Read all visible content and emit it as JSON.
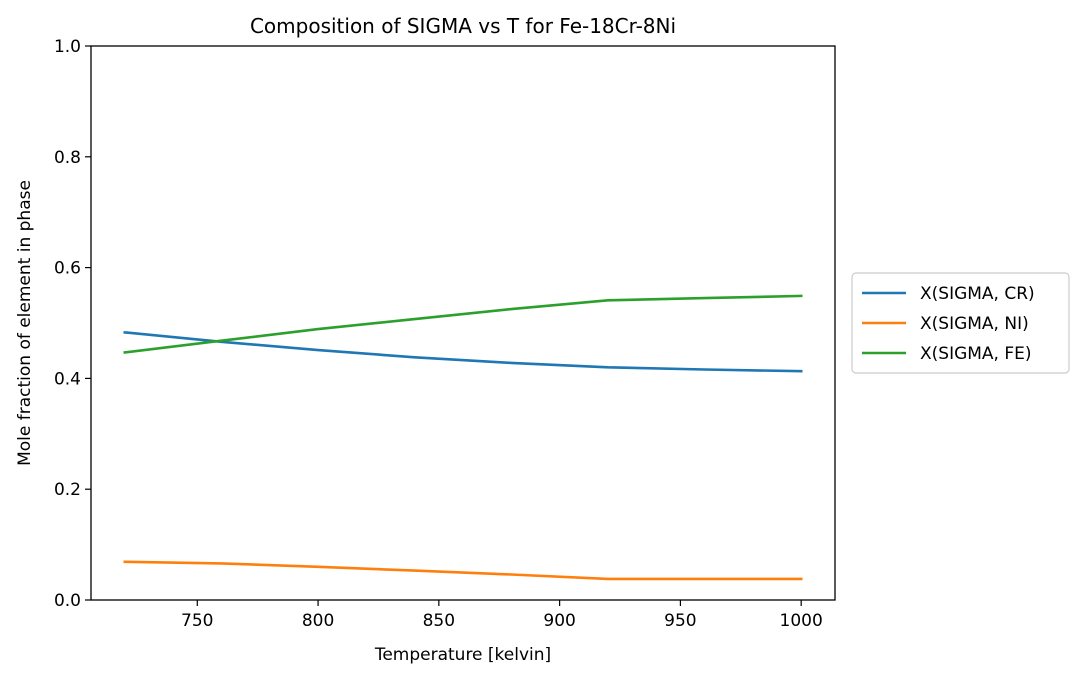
{
  "chart_data": {
    "type": "line",
    "title": "Composition of SIGMA vs T for Fe-18Cr-8Ni",
    "xlabel": "Temperature [kelvin]",
    "ylabel": "Mole fraction of element in phase",
    "xlim": [
      706,
      1014
    ],
    "ylim": [
      0.0,
      1.0
    ],
    "xticks": [
      750,
      800,
      850,
      900,
      950,
      1000
    ],
    "xtick_labels": [
      "750",
      "800",
      "850",
      "900",
      "950",
      "1000"
    ],
    "yticks": [
      0.0,
      0.2,
      0.4,
      0.6,
      0.8,
      1.0
    ],
    "ytick_labels": [
      "0.0",
      "0.2",
      "0.4",
      "0.6",
      "0.8",
      "1.0"
    ],
    "grid": false,
    "legend_position": "outside-right",
    "x": [
      720,
      760,
      800,
      840,
      880,
      920,
      960,
      1000
    ],
    "series": [
      {
        "name": "X(SIGMA, CR)",
        "color": "#1f77b4",
        "values": [
          0.483,
          0.466,
          0.451,
          0.438,
          0.428,
          0.42,
          0.416,
          0.413
        ]
      },
      {
        "name": "X(SIGMA, NI)",
        "color": "#ff7f0e",
        "values": [
          0.069,
          0.066,
          0.06,
          0.053,
          0.046,
          0.038,
          0.038,
          0.038
        ]
      },
      {
        "name": "X(SIGMA, FE)",
        "color": "#2ca02c",
        "values": [
          0.447,
          0.468,
          0.489,
          0.507,
          0.525,
          0.541,
          0.545,
          0.549
        ]
      }
    ]
  }
}
